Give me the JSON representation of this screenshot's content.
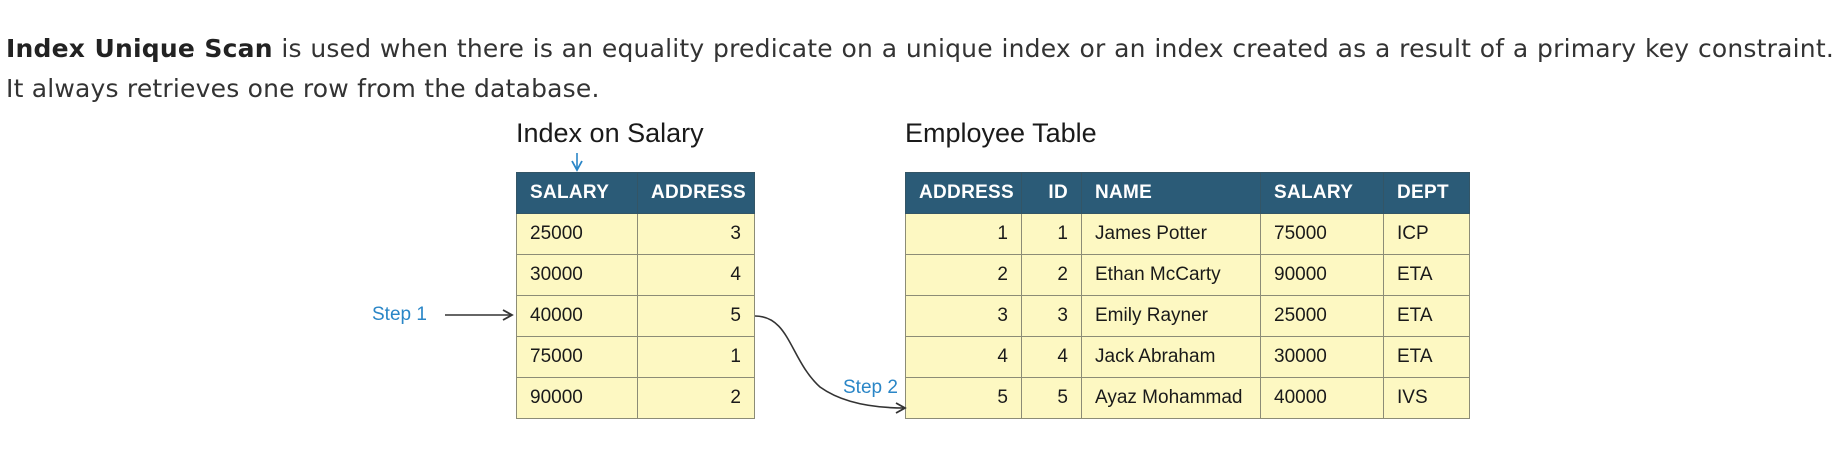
{
  "intro": {
    "term": "Index Unique Scan",
    "text": " is used when there is an equality predicate on a unique index or an index created as a result of a primary key constraint. It always retrieves one row from the database."
  },
  "index_table": {
    "title": "Index on Salary",
    "headers": [
      "SALARY",
      "ADDRESS"
    ],
    "rows": [
      [
        "25000",
        "3"
      ],
      [
        "30000",
        "4"
      ],
      [
        "40000",
        "5"
      ],
      [
        "75000",
        "1"
      ],
      [
        "90000",
        "2"
      ]
    ]
  },
  "employee_table": {
    "title": "Employee Table",
    "headers": [
      "ADDRESS",
      "ID",
      "NAME",
      "SALARY",
      "DEPT"
    ],
    "rows": [
      [
        "1",
        "1",
        "James Potter",
        "75000",
        "ICP"
      ],
      [
        "2",
        "2",
        "Ethan McCarty",
        "90000",
        "ETA"
      ],
      [
        "3",
        "3",
        "Emily Rayner",
        "25000",
        "ETA"
      ],
      [
        "4",
        "4",
        "Jack Abraham",
        "30000",
        "ETA"
      ],
      [
        "5",
        "5",
        "Ayaz Mohammad",
        "40000",
        "IVS"
      ]
    ]
  },
  "steps": {
    "step1": "Step 1",
    "step2": "Step 2"
  },
  "colors": {
    "header_bg": "#2b5b77",
    "cell_bg": "#fdf8c2",
    "step_label": "#2a86c7",
    "arrow": "#333333"
  }
}
